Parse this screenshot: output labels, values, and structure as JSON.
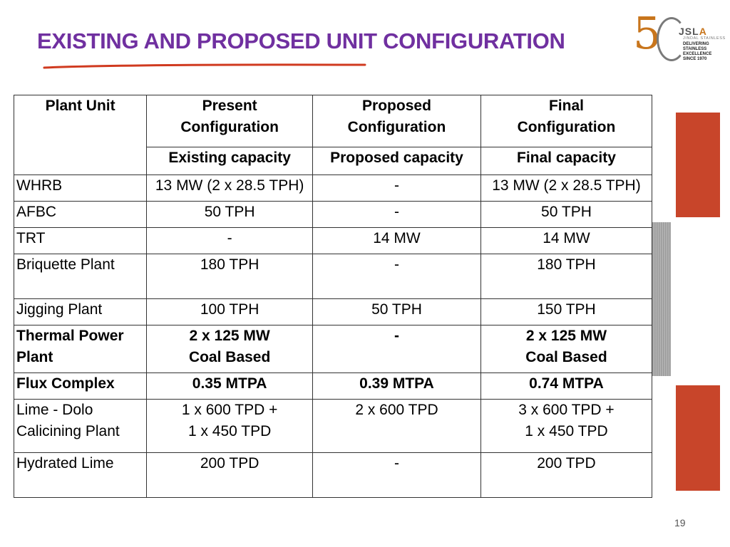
{
  "slide": {
    "title": "EXISTING AND PROPOSED UNIT CONFIGURATION",
    "page_number": "19",
    "accent_color": "#7030a0",
    "underline_color": "#d03a1f",
    "block_color": "#c8452a"
  },
  "logo": {
    "icon": "jsl-50-years-logo",
    "five": "5",
    "brand_prefix": "JSL",
    "brand_suffix": "A",
    "subtitle": "JINDAL STAINLESS",
    "tagline": [
      "DELIVERING",
      "STAINLESS EXCELLENCE",
      "SINCE 1970"
    ]
  },
  "table": {
    "headers": {
      "plant_unit": "Plant Unit",
      "present": [
        "Present",
        "Configuration"
      ],
      "proposed": [
        "Proposed",
        "Configuration"
      ],
      "final": [
        "Final",
        "Configuration"
      ]
    },
    "subheaders": {
      "present": "Existing capacity",
      "proposed": "Proposed capacity",
      "final": "Final capacity"
    },
    "rows": [
      {
        "unit": [
          "WHRB"
        ],
        "present": [
          "13 MW (2 x 28.5 TPH)"
        ],
        "proposed": [
          "-"
        ],
        "final": [
          "13 MW (2 x 28.5 TPH)"
        ]
      },
      {
        "unit": [
          "AFBC"
        ],
        "present": [
          "50 TPH"
        ],
        "proposed": [
          "-"
        ],
        "final": [
          "50 TPH"
        ]
      },
      {
        "unit": [
          "TRT"
        ],
        "present": [
          "-"
        ],
        "proposed": [
          "14 MW"
        ],
        "final": [
          "14 MW"
        ]
      },
      {
        "unit": [
          "Briquette Plant"
        ],
        "present": [
          "180 TPH"
        ],
        "proposed": [
          "-"
        ],
        "final": [
          "180 TPH"
        ]
      },
      {
        "unit": [
          "Jigging Plant"
        ],
        "present": [
          "100 TPH"
        ],
        "proposed": [
          "50 TPH"
        ],
        "final": [
          "150 TPH"
        ]
      },
      {
        "unit": [
          "Thermal Power",
          "Plant"
        ],
        "present": [
          "2 x 125 MW",
          "Coal Based"
        ],
        "proposed": [
          "-"
        ],
        "final": [
          "2 x 125 MW",
          "Coal Based"
        ]
      },
      {
        "unit": [
          "Flux Complex"
        ],
        "present": [
          "0.35 MTPA"
        ],
        "proposed": [
          "0.39 MTPA"
        ],
        "final": [
          "0.74 MTPA"
        ]
      },
      {
        "unit": [
          "Lime - Dolo",
          "Calicining Plant"
        ],
        "present": [
          "1 x 600 TPD +",
          "1 x 450 TPD"
        ],
        "proposed": [
          "2 x 600 TPD"
        ],
        "final": [
          "3 x 600 TPD +",
          "1 x 450 TPD"
        ]
      },
      {
        "unit": [
          "Hydrated Lime"
        ],
        "present": [
          "200 TPD"
        ],
        "proposed": [
          "-"
        ],
        "final": [
          "200 TPD"
        ]
      }
    ]
  }
}
